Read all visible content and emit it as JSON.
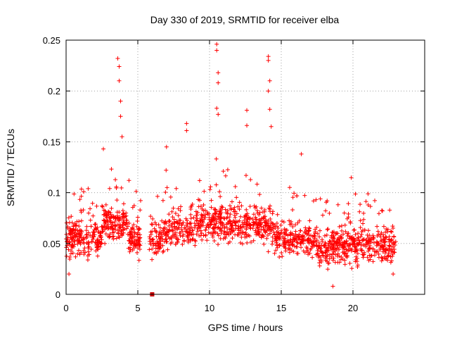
{
  "chart_data": {
    "type": "scatter",
    "title": "Day 330 of 2019, SRMTID for receiver elba",
    "xlabel": "GPS time / hours",
    "ylabel": "SRMTID / TECUs",
    "xlim": [
      0,
      25
    ],
    "ylim": [
      0,
      0.25
    ],
    "xticks": [
      0,
      5,
      10,
      15,
      20
    ],
    "yticks": [
      0,
      0.05,
      0.1,
      0.15,
      0.2,
      0.25
    ],
    "grid": true,
    "marker": "plus",
    "color": "#ff0000",
    "gap_hours": [
      5.2,
      5.8
    ],
    "outlier": {
      "x": 6.0,
      "y": 0.0
    },
    "sample_points": [
      {
        "x": 3.6,
        "y": 0.232
      },
      {
        "x": 3.7,
        "y": 0.224
      },
      {
        "x": 3.7,
        "y": 0.21
      },
      {
        "x": 3.8,
        "y": 0.19
      },
      {
        "x": 3.8,
        "y": 0.175
      },
      {
        "x": 3.9,
        "y": 0.155
      },
      {
        "x": 10.5,
        "y": 0.246
      },
      {
        "x": 10.5,
        "y": 0.24
      },
      {
        "x": 10.6,
        "y": 0.218
      },
      {
        "x": 10.6,
        "y": 0.208
      },
      {
        "x": 10.5,
        "y": 0.183
      },
      {
        "x": 10.6,
        "y": 0.177
      },
      {
        "x": 14.1,
        "y": 0.234
      },
      {
        "x": 14.1,
        "y": 0.23
      },
      {
        "x": 14.2,
        "y": 0.21
      },
      {
        "x": 14.1,
        "y": 0.2
      },
      {
        "x": 14.2,
        "y": 0.182
      },
      {
        "x": 14.3,
        "y": 0.165
      },
      {
        "x": 8.4,
        "y": 0.168
      },
      {
        "x": 8.4,
        "y": 0.161
      },
      {
        "x": 12.6,
        "y": 0.181
      },
      {
        "x": 12.6,
        "y": 0.166
      },
      {
        "x": 2.6,
        "y": 0.143
      },
      {
        "x": 7.0,
        "y": 0.145
      },
      {
        "x": 16.4,
        "y": 0.138
      },
      {
        "x": 18.6,
        "y": 0.008
      },
      {
        "x": 0.2,
        "y": 0.02
      },
      {
        "x": 22.8,
        "y": 0.02
      }
    ]
  }
}
